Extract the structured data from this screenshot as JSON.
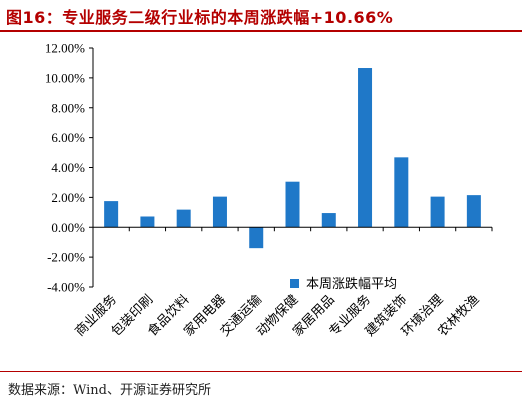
{
  "header": {
    "title": "图16：专业服务二级行业标的本周涨跌幅+10.66%"
  },
  "footer": {
    "source": "数据来源：Wind、开源证券研究所"
  },
  "chart_data": {
    "type": "bar",
    "categories": [
      "商业服务",
      "包装印刷",
      "食品饮料",
      "家用电器",
      "交通运输",
      "动物保健",
      "家居用品",
      "专业服务",
      "建筑装饰",
      "环境治理",
      "农林牧渔"
    ],
    "series": [
      {
        "name": "本周涨跌幅平均",
        "values": [
          1.75,
          0.72,
          1.18,
          2.05,
          -1.4,
          3.05,
          0.95,
          10.66,
          4.68,
          2.05,
          2.15
        ]
      }
    ],
    "ylim": [
      -4,
      12
    ],
    "yticks": [
      "-4.00%",
      "-2.00%",
      "0.00%",
      "2.00%",
      "4.00%",
      "6.00%",
      "8.00%",
      "10.00%",
      "12.00%"
    ],
    "ytick_values": [
      -4,
      -2,
      0,
      2,
      4,
      6,
      8,
      10,
      12
    ],
    "grid": false,
    "legend_position": "bottom-right",
    "bar_color": "#1f78c8"
  }
}
